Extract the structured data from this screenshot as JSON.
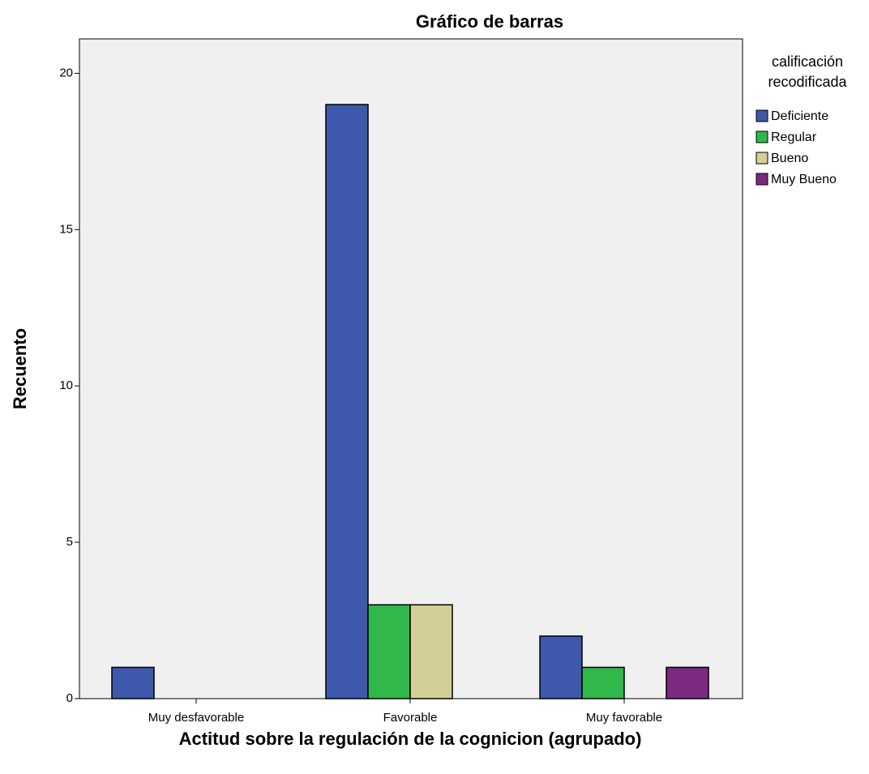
{
  "chart_data": {
    "type": "bar",
    "title": "Gráfico de barras",
    "x_label": "Actitud sobre la regulación de la cognicion (agrupado)",
    "y_label": "Recuento",
    "legend_title": [
      "calificación",
      "recodificada"
    ],
    "categories": [
      "Muy desfavorable",
      "Favorable",
      "Muy favorable"
    ],
    "series": [
      {
        "name": "Deficiente",
        "color": "#3e58ac",
        "values": [
          1,
          19,
          2
        ]
      },
      {
        "name": "Regular",
        "color": "#30b84a",
        "values": [
          0,
          3,
          1
        ]
      },
      {
        "name": "Bueno",
        "color": "#d4cf98",
        "values": [
          0,
          3,
          0
        ]
      },
      {
        "name": "Muy Bueno",
        "color": "#7b2a7f",
        "values": [
          0,
          0,
          1
        ]
      }
    ],
    "ylim": [
      0,
      21.1
    ],
    "yticks": [
      0,
      5,
      10,
      15,
      20
    ],
    "legend": "right"
  }
}
